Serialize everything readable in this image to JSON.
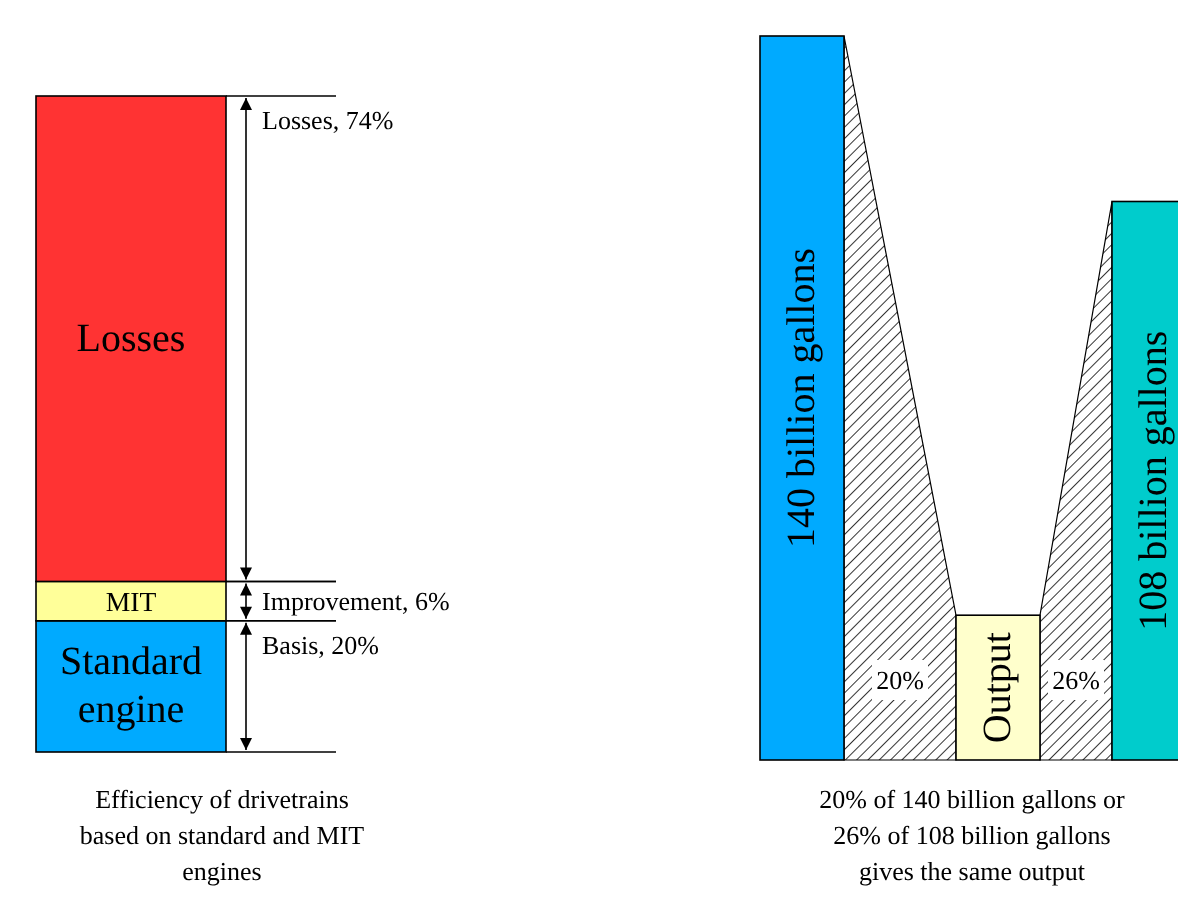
{
  "chart_data": [
    {
      "type": "bar",
      "stacked": true,
      "categories": [
        null
      ],
      "title": "Efficiency of drivetrains based on standard and MIT engines",
      "series": [
        {
          "name": "Standard engine",
          "color": "#00aaff",
          "values": [
            20
          ],
          "value_labels": [
            "Basis, 20%"
          ]
        },
        {
          "name": "MIT",
          "color": "#ffff99",
          "values": [
            6
          ],
          "value_labels": [
            "Improvement, 6%"
          ]
        },
        {
          "name": "Losses",
          "color": "#ff3333",
          "values": [
            74
          ],
          "value_labels": [
            "Losses, 74%"
          ]
        }
      ]
    },
    {
      "type": "bar",
      "categories": [
        null,
        null,
        null
      ],
      "values": [
        140,
        28,
        108
      ],
      "colors": [
        "#00aaff",
        "#ffffcc",
        "#00cccc"
      ],
      "value_labels": [
        "140 billion gallons",
        "Output",
        "108 billion gallons"
      ],
      "annotations": [
        "20%",
        "26%"
      ],
      "title": "20% of 140 billion gallons or 26% of 108 billion gallons gives the same output"
    }
  ]
}
